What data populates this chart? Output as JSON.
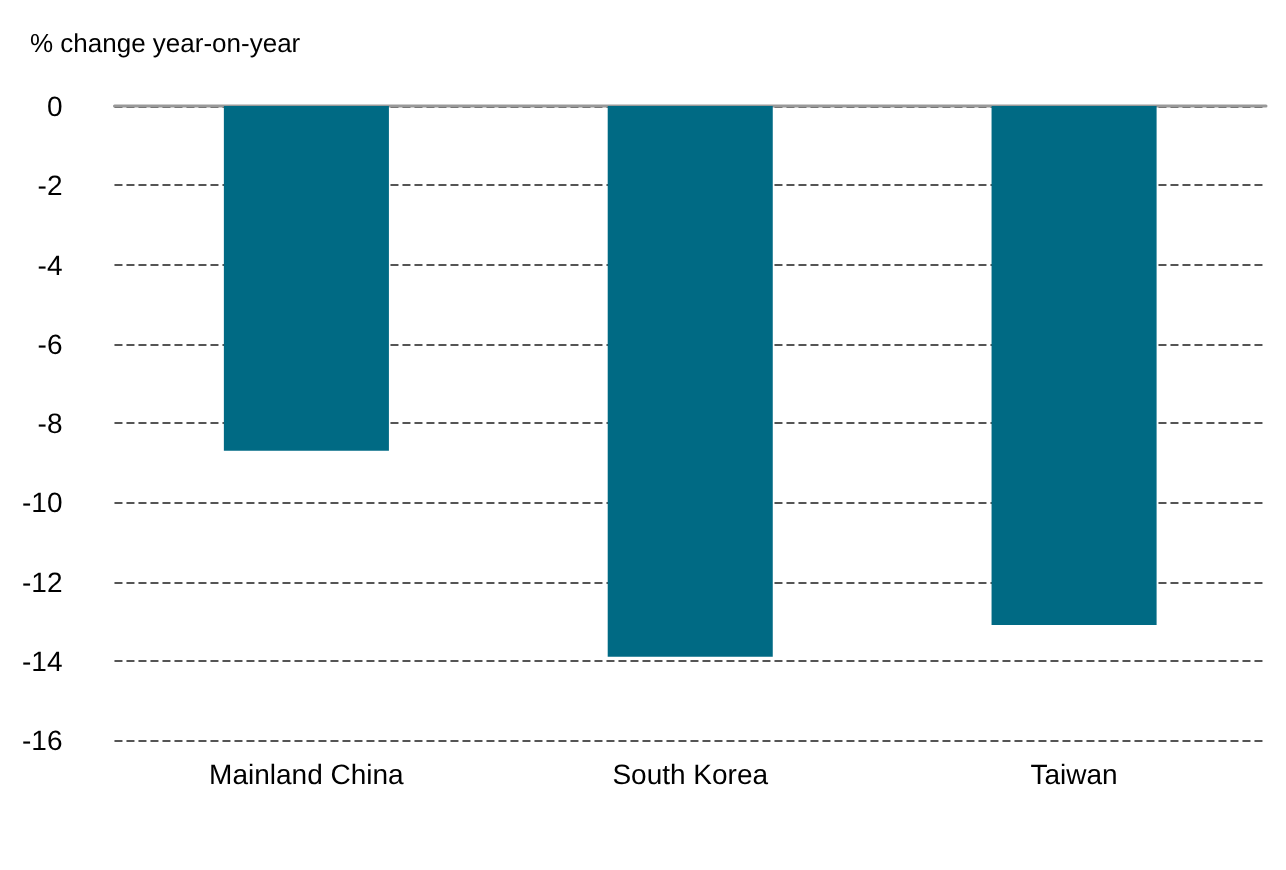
{
  "chart_data": {
    "type": "bar",
    "ylabel": "% change year-on-year",
    "categories": [
      "Mainland China",
      "South Korea",
      "Taiwan"
    ],
    "values": [
      -8.7,
      -13.9,
      -13.1
    ],
    "color": "#006a84",
    "ylim": [
      -16,
      0
    ],
    "yticks": [
      -16,
      -14,
      -12,
      -10,
      -8,
      -6,
      -4,
      -2,
      0
    ],
    "grid": "y"
  }
}
